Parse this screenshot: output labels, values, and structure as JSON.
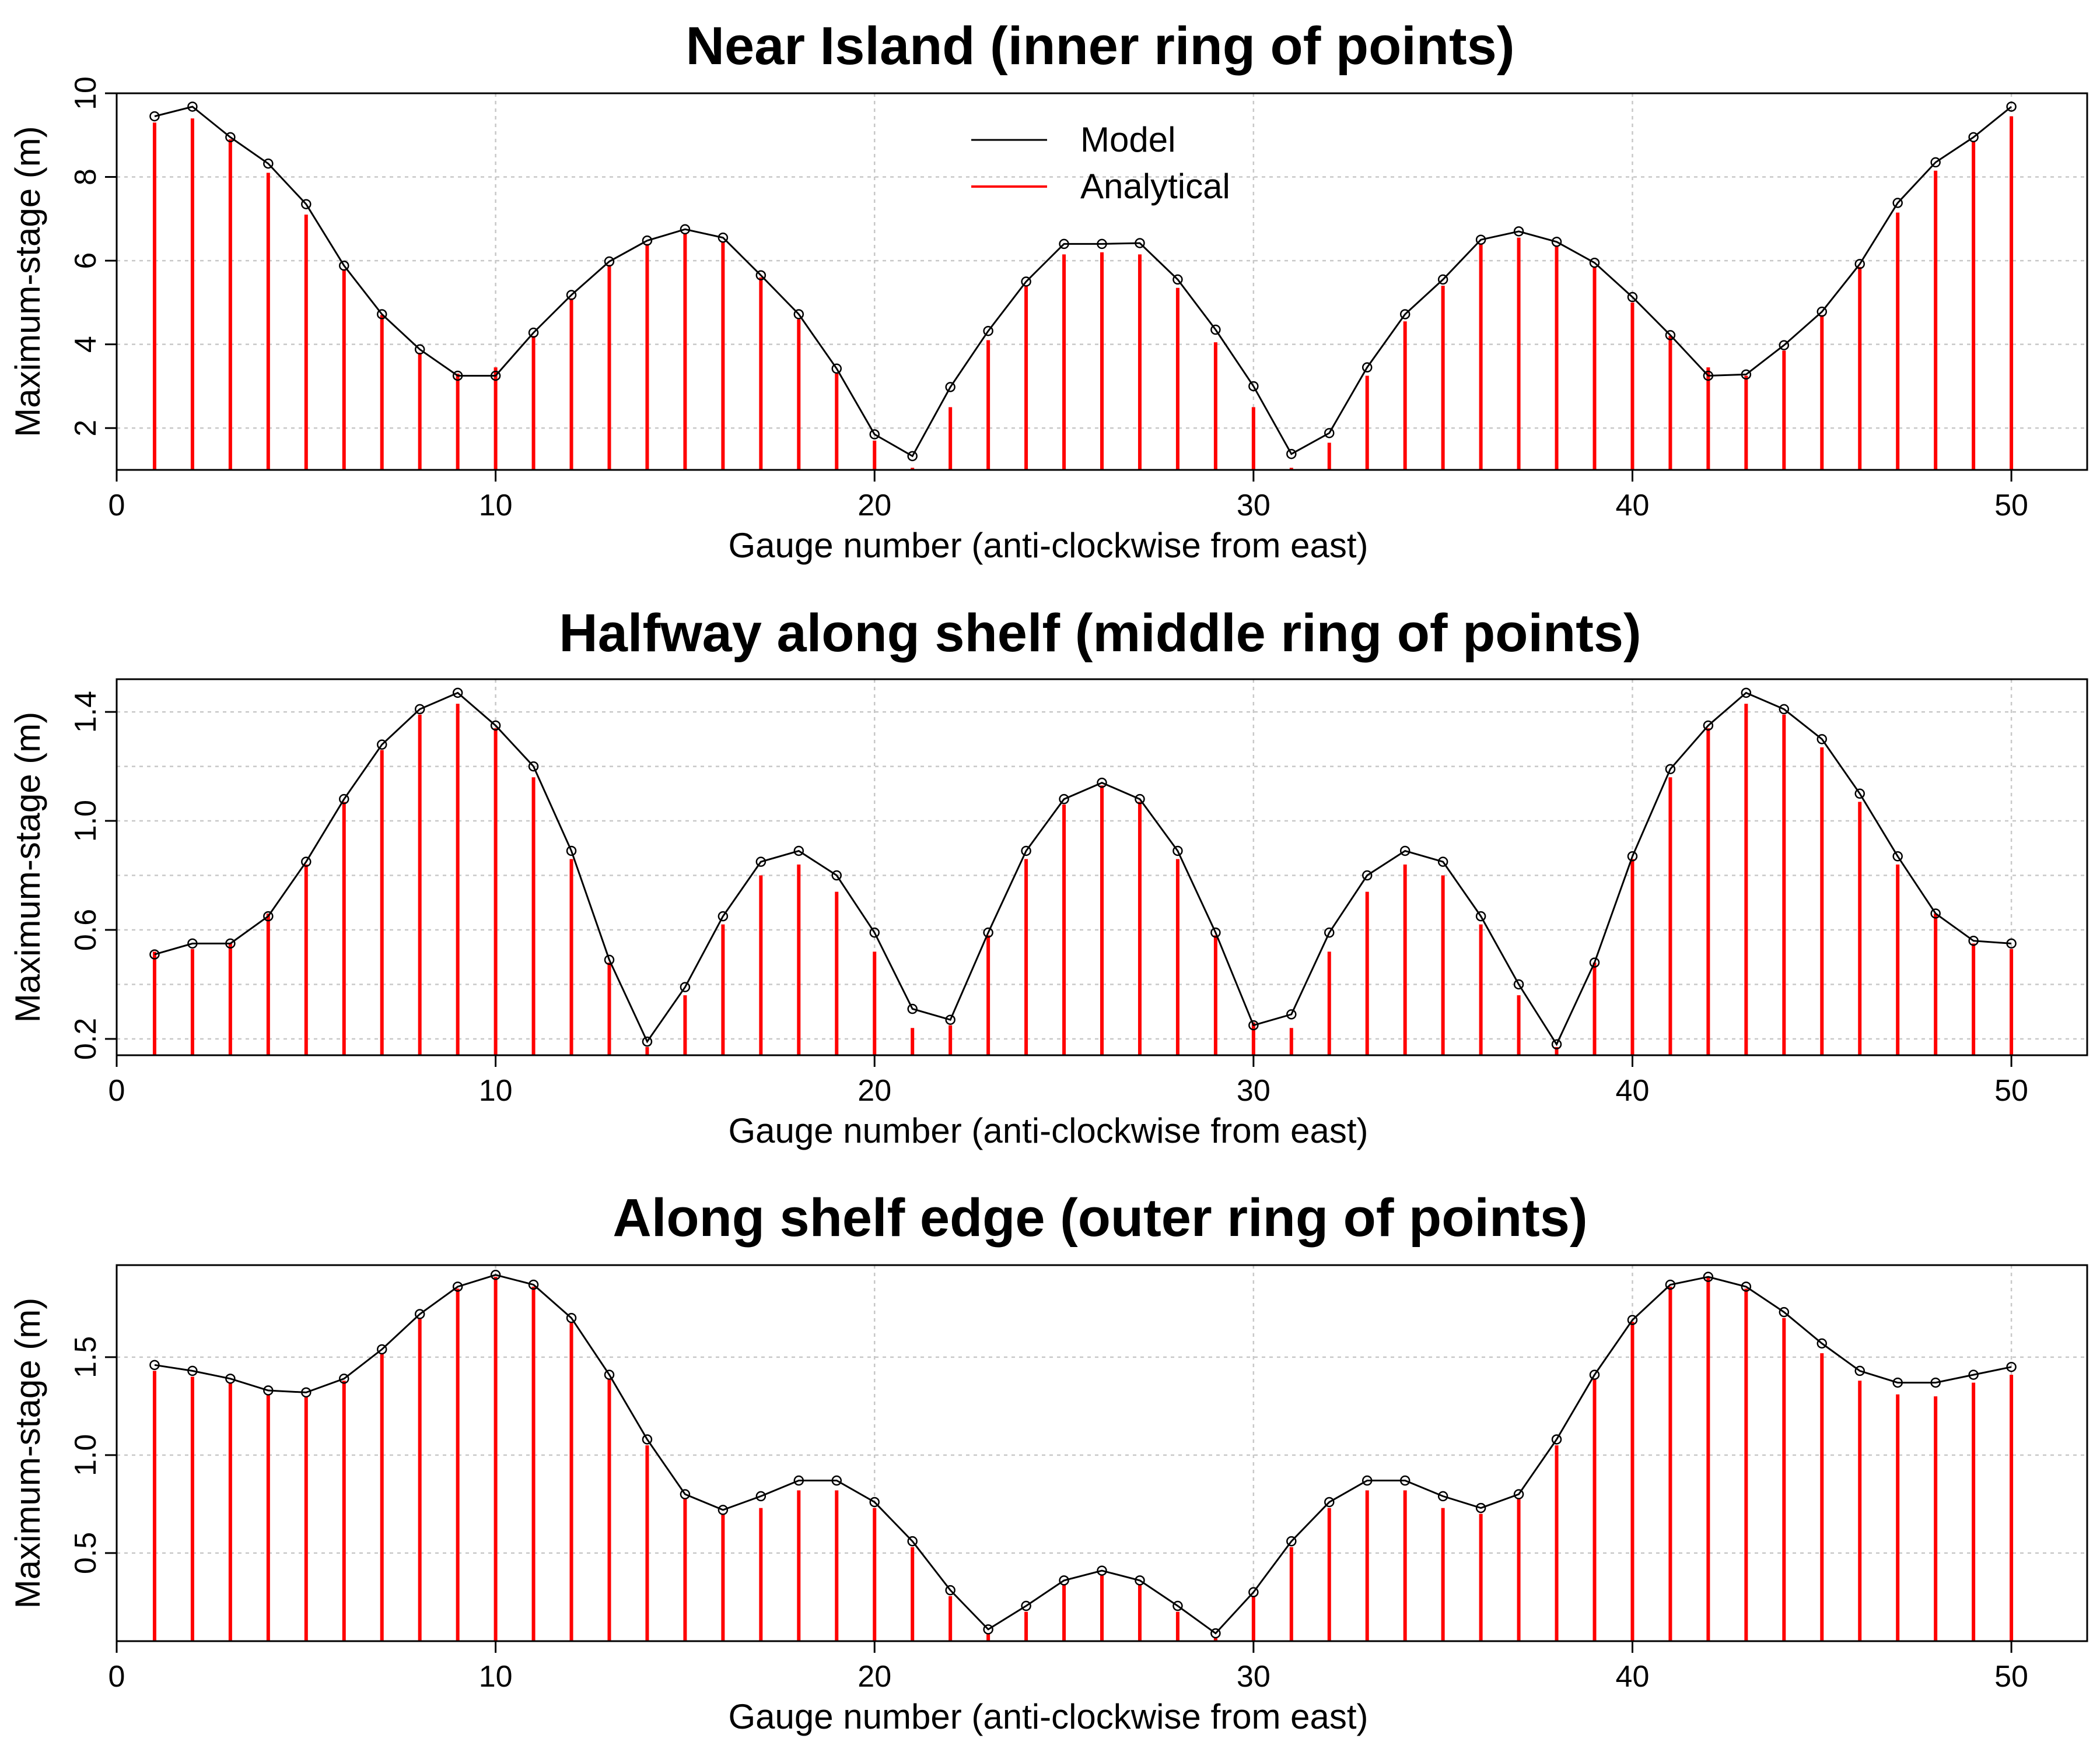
{
  "figure": {
    "x_label": "Gauge number (anti-clockwise from east)",
    "y_label": "Maximum-stage (m)",
    "legend": [
      {
        "label": "Model",
        "color": "#000000"
      },
      {
        "label": "Analytical",
        "color": "#ff0000"
      }
    ]
  },
  "chart_data": [
    {
      "type": "line",
      "title": "Near Island (inner ring of points)",
      "xlabel": "Gauge number (anti-clockwise from east)",
      "ylabel": "Maximum-stage (m)",
      "xlim": [
        0,
        52
      ],
      "ylim": [
        1,
        10
      ],
      "x_ticks": [
        0,
        10,
        20,
        30,
        40,
        50
      ],
      "y_ticks": [
        2,
        4,
        6,
        8,
        10
      ],
      "grid": true,
      "legend_position": "top-center",
      "x": [
        1,
        2,
        3,
        4,
        5,
        6,
        7,
        8,
        9,
        10,
        11,
        12,
        13,
        14,
        15,
        16,
        17,
        18,
        19,
        20,
        21,
        22,
        23,
        24,
        25,
        26,
        27,
        28,
        29,
        30,
        31,
        32,
        33,
        34,
        35,
        36,
        37,
        38,
        39,
        40,
        41,
        42,
        43,
        44,
        45,
        46,
        47,
        48,
        49,
        50
      ],
      "series": [
        {
          "name": "Model",
          "color": "#000000",
          "style": "line-points",
          "values": [
            9.45,
            9.68,
            8.95,
            8.32,
            7.35,
            5.88,
            4.72,
            3.88,
            3.25,
            3.25,
            4.28,
            5.18,
            5.98,
            6.48,
            6.75,
            6.55,
            5.65,
            4.72,
            3.42,
            1.85,
            1.33,
            2.98,
            4.32,
            5.5,
            6.4,
            6.4,
            6.42,
            5.55,
            4.35,
            3.0,
            1.38,
            1.88,
            3.45,
            4.72,
            5.55,
            6.5,
            6.7,
            6.45,
            5.95,
            5.13,
            4.22,
            3.25,
            3.28,
            3.98,
            4.78,
            5.92,
            7.38,
            8.35,
            8.95,
            9.68
          ]
        },
        {
          "name": "Analytical",
          "color": "#ff0000",
          "style": "vertical-bars",
          "values": [
            9.3,
            9.4,
            8.9,
            8.1,
            7.1,
            5.8,
            4.7,
            3.8,
            3.3,
            3.45,
            4.2,
            5.1,
            5.9,
            6.4,
            6.65,
            6.45,
            5.6,
            4.6,
            3.3,
            1.7,
            1.05,
            2.5,
            4.1,
            5.4,
            6.15,
            6.2,
            6.15,
            5.35,
            4.05,
            2.5,
            1.05,
            1.65,
            3.25,
            4.55,
            5.4,
            6.4,
            6.55,
            6.35,
            5.85,
            5.0,
            4.2,
            3.45,
            3.25,
            3.85,
            4.7,
            5.85,
            7.15,
            8.15,
            8.85,
            9.45
          ]
        }
      ]
    },
    {
      "type": "line",
      "title": "Halfway along shelf (middle ring of points)",
      "xlabel": "Gauge number (anti-clockwise from east)",
      "ylabel": "Maximum-stage (m)",
      "xlim": [
        0,
        52
      ],
      "ylim": [
        0.14,
        1.52
      ],
      "x_ticks": [
        0,
        10,
        20,
        30,
        40,
        50
      ],
      "y_ticks": [
        0.2,
        0.6,
        1.0,
        1.4
      ],
      "y_minor_gridlines": [
        0.4,
        0.8,
        1.2
      ],
      "grid": true,
      "x": [
        1,
        2,
        3,
        4,
        5,
        6,
        7,
        8,
        9,
        10,
        11,
        12,
        13,
        14,
        15,
        16,
        17,
        18,
        19,
        20,
        21,
        22,
        23,
        24,
        25,
        26,
        27,
        28,
        29,
        30,
        31,
        32,
        33,
        34,
        35,
        36,
        37,
        38,
        39,
        40,
        41,
        42,
        43,
        44,
        45,
        46,
        47,
        48,
        49,
        50
      ],
      "series": [
        {
          "name": "Model",
          "color": "#000000",
          "style": "line-points",
          "values": [
            0.51,
            0.55,
            0.55,
            0.65,
            0.85,
            1.08,
            1.28,
            1.41,
            1.47,
            1.35,
            1.2,
            0.89,
            0.49,
            0.19,
            0.39,
            0.65,
            0.85,
            0.89,
            0.8,
            0.59,
            0.31,
            0.27,
            0.59,
            0.89,
            1.08,
            1.14,
            1.08,
            0.89,
            0.59,
            0.25,
            0.29,
            0.59,
            0.8,
            0.89,
            0.85,
            0.65,
            0.4,
            0.18,
            0.48,
            0.87,
            1.19,
            1.35,
            1.47,
            1.41,
            1.3,
            1.1,
            0.87,
            0.66,
            0.56,
            0.55
          ]
        },
        {
          "name": "Analytical",
          "color": "#ff0000",
          "style": "vertical-bars",
          "values": [
            0.52,
            0.53,
            0.55,
            0.66,
            0.84,
            1.07,
            1.26,
            1.39,
            1.43,
            1.34,
            1.16,
            0.86,
            0.48,
            0.17,
            0.36,
            0.62,
            0.8,
            0.84,
            0.74,
            0.52,
            0.24,
            0.25,
            0.58,
            0.86,
            1.06,
            1.13,
            1.07,
            0.86,
            0.58,
            0.26,
            0.24,
            0.52,
            0.74,
            0.84,
            0.8,
            0.62,
            0.36,
            0.17,
            0.48,
            0.86,
            1.16,
            1.34,
            1.43,
            1.39,
            1.27,
            1.07,
            0.84,
            0.66,
            0.55,
            0.53
          ]
        }
      ]
    },
    {
      "type": "line",
      "title": "Along shelf edge (outer ring of points)",
      "xlabel": "Gauge number (anti-clockwise from east)",
      "ylabel": "Maximum-stage (m)",
      "xlim": [
        0,
        52
      ],
      "ylim": [
        0.05,
        1.97
      ],
      "x_ticks": [
        0,
        10,
        20,
        30,
        40,
        50
      ],
      "y_ticks": [
        0.5,
        1.0,
        1.5
      ],
      "grid": true,
      "x": [
        1,
        2,
        3,
        4,
        5,
        6,
        7,
        8,
        9,
        10,
        11,
        12,
        13,
        14,
        15,
        16,
        17,
        18,
        19,
        20,
        21,
        22,
        23,
        24,
        25,
        26,
        27,
        28,
        29,
        30,
        31,
        32,
        33,
        34,
        35,
        36,
        37,
        38,
        39,
        40,
        41,
        42,
        43,
        44,
        45,
        46,
        47,
        48,
        49,
        50
      ],
      "series": [
        {
          "name": "Model",
          "color": "#000000",
          "style": "line-points",
          "values": [
            1.46,
            1.43,
            1.39,
            1.33,
            1.32,
            1.39,
            1.54,
            1.72,
            1.86,
            1.92,
            1.87,
            1.7,
            1.41,
            1.08,
            0.8,
            0.72,
            0.79,
            0.87,
            0.87,
            0.76,
            0.56,
            0.31,
            0.11,
            0.23,
            0.36,
            0.41,
            0.36,
            0.23,
            0.09,
            0.3,
            0.56,
            0.76,
            0.87,
            0.87,
            0.79,
            0.73,
            0.8,
            1.08,
            1.41,
            1.69,
            1.87,
            1.91,
            1.86,
            1.73,
            1.57,
            1.43,
            1.37,
            1.37,
            1.41,
            1.45
          ]
        },
        {
          "name": "Analytical",
          "color": "#ff0000",
          "style": "vertical-bars",
          "values": [
            1.43,
            1.4,
            1.37,
            1.31,
            1.3,
            1.38,
            1.52,
            1.7,
            1.85,
            1.91,
            1.86,
            1.68,
            1.39,
            1.05,
            0.78,
            0.7,
            0.73,
            0.82,
            0.82,
            0.73,
            0.53,
            0.28,
            0.09,
            0.2,
            0.34,
            0.39,
            0.34,
            0.2,
            0.07,
            0.28,
            0.53,
            0.73,
            0.82,
            0.82,
            0.73,
            0.7,
            0.78,
            1.05,
            1.39,
            1.68,
            1.86,
            1.91,
            1.85,
            1.7,
            1.52,
            1.38,
            1.31,
            1.3,
            1.37,
            1.41
          ]
        }
      ]
    }
  ]
}
